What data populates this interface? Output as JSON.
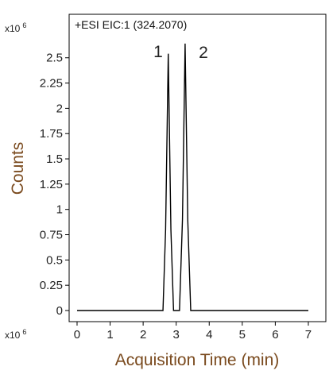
{
  "chart_data": {
    "type": "line",
    "title": "+ESI EIC:1 (324.2070)",
    "y_multiplier": {
      "base": "x10",
      "exponent": "6"
    },
    "x_multiplier": {
      "base": "x10",
      "exponent": "6"
    },
    "xlabel": "Acquisition Time (min)",
    "ylabel": "Counts",
    "peak_labels": [
      "1",
      "2"
    ],
    "x": [
      0,
      2.6,
      2.68,
      2.76,
      2.84,
      2.92,
      3.1,
      3.19,
      3.27,
      3.35,
      3.44,
      7
    ],
    "series": [
      {
        "color": "#000000",
        "values": [
          0,
          0,
          0.8,
          2.54,
          0.8,
          0,
          0,
          0.9,
          2.64,
          0.9,
          0,
          0
        ]
      }
    ],
    "xlim": [
      -0.24,
      7.53
    ],
    "ylim": [
      -0.11,
      2.93
    ],
    "xticks": [
      0,
      1,
      2,
      3,
      4,
      5,
      6,
      7
    ],
    "yticks": [
      0,
      0.25,
      0.5,
      0.75,
      1,
      1.25,
      1.5,
      1.75,
      2,
      2.25,
      2.5
    ],
    "grid": false
  }
}
